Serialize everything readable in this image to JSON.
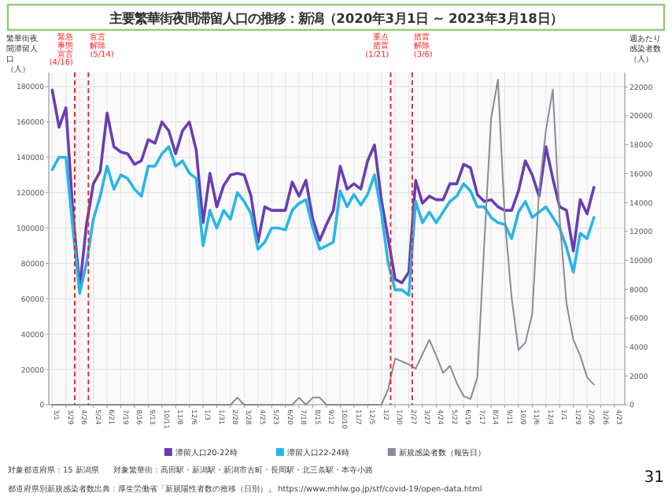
{
  "chart_data": {
    "type": "line",
    "title": "主要繁華街夜間滞留人口の推移：新潟（2020年3月1日 ~ 2023年3月18日）",
    "ylabel": "繁華街夜間滞留人口（人）",
    "y2label": "週あたり感染者数（人）",
    "x": [
      "2020-03-01",
      "2020-03-15",
      "2020-03-29",
      "2020-04-12",
      "2020-04-26",
      "2020-05-10",
      "2020-05-24",
      "2020-06-07",
      "2020-06-21",
      "2020-07-05",
      "2020-07-19",
      "2020-08-02",
      "2020-08-16",
      "2020-08-30",
      "2020-09-13",
      "2020-09-27",
      "2020-10-11",
      "2020-10-25",
      "2020-11-08",
      "2020-11-22",
      "2020-12-06",
      "2020-12-20",
      "2021-01-03",
      "2021-01-17",
      "2021-01-31",
      "2021-02-14",
      "2021-02-28",
      "2021-03-14",
      "2021-03-28",
      "2021-04-11",
      "2021-04-25",
      "2021-05-09",
      "2021-05-23",
      "2021-06-06",
      "2021-06-20",
      "2021-07-04",
      "2021-07-18",
      "2021-08-01",
      "2021-08-15",
      "2021-08-29",
      "2021-09-12",
      "2021-09-26",
      "2021-10-10",
      "2021-10-24",
      "2021-11-07",
      "2021-11-21",
      "2021-12-05",
      "2021-12-19",
      "2022-01-02",
      "2022-01-16",
      "2022-01-30",
      "2022-02-13",
      "2022-02-27",
      "2022-03-13",
      "2022-03-27",
      "2022-04-10",
      "2022-04-24",
      "2022-05-08",
      "2022-05-22",
      "2022-06-05",
      "2022-06-19",
      "2022-07-03",
      "2022-07-17",
      "2022-07-31",
      "2022-08-14",
      "2022-08-28",
      "2022-09-11",
      "2022-09-25",
      "2022-10-09",
      "2022-10-23",
      "2022-11-06",
      "2022-11-20",
      "2022-12-04",
      "2022-12-18",
      "2023-01-01",
      "2023-01-15",
      "2023-01-29",
      "2023-02-12",
      "2023-02-26",
      "2023-03-12"
    ],
    "series": [
      {
        "name": "滞留人口20-22時",
        "color": "#6a3db3",
        "values": [
          178000,
          157000,
          168000,
          110000,
          66000,
          102000,
          125000,
          132000,
          165000,
          146000,
          143000,
          142000,
          136000,
          138000,
          150000,
          148000,
          160000,
          155000,
          142000,
          155000,
          160000,
          144000,
          103000,
          131000,
          112000,
          124000,
          130000,
          131000,
          130000,
          118000,
          92000,
          112000,
          110000,
          110000,
          110000,
          126000,
          118000,
          127000,
          105000,
          93000,
          102000,
          110000,
          135000,
          122000,
          125000,
          122000,
          138000,
          147000,
          116000,
          94000,
          71000,
          69000,
          75000,
          127000,
          114000,
          118000,
          116000,
          116000,
          125000,
          125000,
          136000,
          134000,
          119000,
          115000,
          116000,
          112000,
          110000,
          110000,
          121000,
          138000,
          130000,
          118000,
          146000,
          128000,
          112000,
          110000,
          87000,
          116000,
          108000,
          123000
        ]
      },
      {
        "name": "滞留人口22-24時",
        "color": "#29b5e8",
        "values": [
          133000,
          140000,
          140000,
          100000,
          63000,
          80000,
          105000,
          118000,
          135000,
          122000,
          130000,
          128000,
          122000,
          118000,
          135000,
          135000,
          142000,
          146000,
          135000,
          138000,
          131000,
          128000,
          90000,
          110000,
          100000,
          110000,
          105000,
          120000,
          115000,
          108000,
          88000,
          92000,
          100000,
          100000,
          99000,
          110000,
          114000,
          116000,
          100000,
          88000,
          90000,
          92000,
          121000,
          112000,
          119000,
          113000,
          119000,
          130000,
          109000,
          80000,
          65000,
          65000,
          62000,
          115000,
          103000,
          109000,
          103000,
          109000,
          115000,
          118000,
          125000,
          121000,
          112000,
          112000,
          106000,
          103000,
          102000,
          94000,
          109000,
          115000,
          106000,
          109000,
          112000,
          106000,
          100000,
          89000,
          75000,
          97000,
          94000,
          106000
        ]
      },
      {
        "name": "新規感染者数（報告日）",
        "color": "#878c96",
        "axis": "y2",
        "values": [
          0,
          0,
          0,
          0,
          0,
          0,
          0,
          0,
          0,
          0,
          0,
          0,
          0,
          0,
          0,
          0,
          0,
          0,
          0,
          0,
          0,
          0,
          0,
          0,
          0,
          0,
          0,
          500,
          0,
          0,
          0,
          0,
          0,
          0,
          0,
          0,
          500,
          0,
          500,
          500,
          0,
          0,
          0,
          0,
          0,
          0,
          0,
          0,
          0,
          1100,
          3200,
          3000,
          2800,
          2500,
          3500,
          4500,
          3400,
          2200,
          2700,
          1500,
          600,
          400,
          1900,
          11100,
          19800,
          22500,
          12900,
          7400,
          3800,
          4300,
          6300,
          14800,
          19000,
          21800,
          12900,
          7000,
          4500,
          3400,
          1900,
          1400
        ]
      }
    ],
    "xlim": [
      "2020-02-23",
      "2023-05-14"
    ],
    "xticks": [
      {
        "value": "2020-03-01",
        "label": "3/1"
      },
      {
        "value": "2020-03-29",
        "label": "3/29"
      },
      {
        "value": "2020-04-26",
        "label": "4/26"
      },
      {
        "value": "2020-05-24",
        "label": "5/24"
      },
      {
        "value": "2020-06-21",
        "label": "6/21"
      },
      {
        "value": "2020-07-19",
        "label": "7/19"
      },
      {
        "value": "2020-08-16",
        "label": "8/16"
      },
      {
        "value": "2020-09-13",
        "label": "9/13"
      },
      {
        "value": "2020-10-11",
        "label": "10/11"
      },
      {
        "value": "2020-11-08",
        "label": "11/8"
      },
      {
        "value": "2020-12-06",
        "label": "12/6"
      },
      {
        "value": "2021-01-03",
        "label": "1/3"
      },
      {
        "value": "2021-01-31",
        "label": "1/31"
      },
      {
        "value": "2021-02-28",
        "label": "2/28"
      },
      {
        "value": "2021-03-28",
        "label": "3/28"
      },
      {
        "value": "2021-04-25",
        "label": "4/25"
      },
      {
        "value": "2021-05-23",
        "label": "5/23"
      },
      {
        "value": "2021-06-20",
        "label": "6/20"
      },
      {
        "value": "2021-07-18",
        "label": "7/18"
      },
      {
        "value": "2021-08-15",
        "label": "8/15"
      },
      {
        "value": "2021-09-12",
        "label": "9/12"
      },
      {
        "value": "2021-10-10",
        "label": "10/10"
      },
      {
        "value": "2021-11-07",
        "label": "11/7"
      },
      {
        "value": "2021-12-05",
        "label": "12/5"
      },
      {
        "value": "2022-01-02",
        "label": "1/2"
      },
      {
        "value": "2022-01-30",
        "label": "1/30"
      },
      {
        "value": "2022-02-27",
        "label": "2/27"
      },
      {
        "value": "2022-03-27",
        "label": "3/27"
      },
      {
        "value": "2022-04-24",
        "label": "4/24"
      },
      {
        "value": "2022-05-22",
        "label": "5/22"
      },
      {
        "value": "2022-06-19",
        "label": "6/19"
      },
      {
        "value": "2022-07-17",
        "label": "7/17"
      },
      {
        "value": "2022-08-14",
        "label": "8/14"
      },
      {
        "value": "2022-09-11",
        "label": "9/11"
      },
      {
        "value": "2022-10-09",
        "label": "10/9"
      },
      {
        "value": "2022-11-06",
        "label": "11/6"
      },
      {
        "value": "2022-12-04",
        "label": "12/4"
      },
      {
        "value": "2023-01-01",
        "label": "1/1"
      },
      {
        "value": "2023-01-29",
        "label": "1/29"
      },
      {
        "value": "2023-02-26",
        "label": "2/26"
      },
      {
        "value": "2023-03-26",
        "label": "3/26"
      },
      {
        "value": "2023-04-23",
        "label": "4/23"
      }
    ],
    "ylim": [
      0,
      188000
    ],
    "yticks": [
      0,
      20000,
      40000,
      60000,
      80000,
      100000,
      120000,
      140000,
      160000,
      180000
    ],
    "y2lim": [
      0,
      23000
    ],
    "y2ticks": [
      0,
      2000,
      4000,
      6000,
      8000,
      10000,
      12000,
      14000,
      16000,
      18000,
      20000,
      22000
    ],
    "grid": true,
    "legend": "bottom",
    "line_style": "solid",
    "ref_lines": [
      {
        "axis": "x",
        "value": "2020-04-16",
        "label": "緊急事態宣言(4/16)",
        "color": "#ff2020",
        "line_style": "dashed"
      },
      {
        "axis": "x",
        "value": "2020-05-14",
        "label": "宣言解除(5/14)",
        "color": "#ff2020",
        "line_style": "dashed"
      },
      {
        "axis": "x",
        "value": "2022-01-21",
        "label": "重点措置(1/21)",
        "color": "#ff2020",
        "line_style": "dashed"
      },
      {
        "axis": "x",
        "value": "2022-03-06",
        "label": "措置解除(3/6)",
        "color": "#ff2020",
        "line_style": "dashed"
      }
    ],
    "annotations": [
      "対象都道府県：15 新潟県",
      "対象繁華街：高田駅・新潟駅・新潟市古町・長岡駅・北三条駅・本寺小路",
      "都道府県別新規感染者数出典：厚生労働省「新規陽性者数の推移（日別）」 https://www.mhlw.go.jp/stf/covid-19/open-data.html",
      "31"
    ]
  }
}
